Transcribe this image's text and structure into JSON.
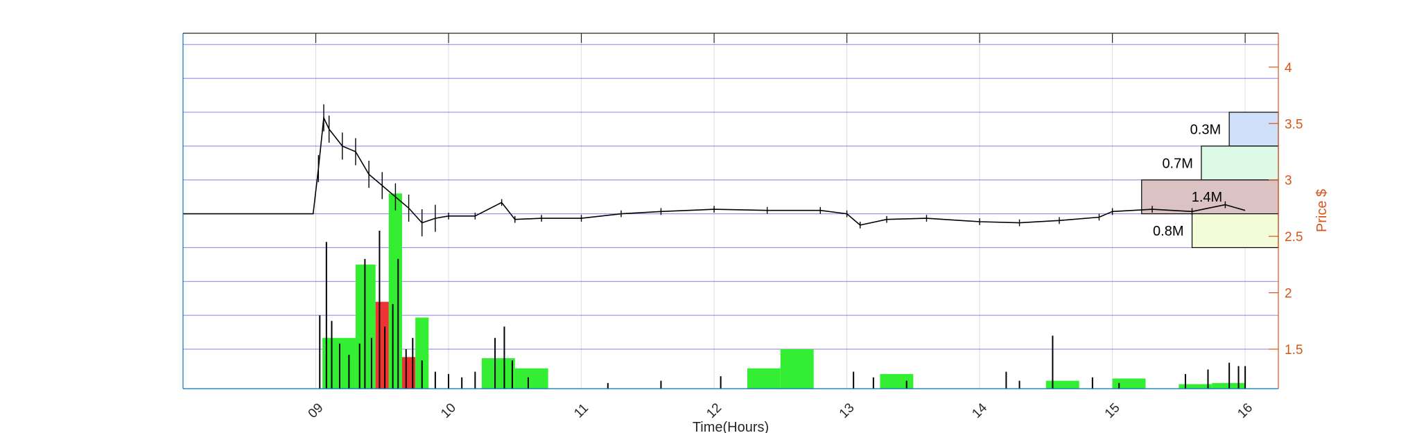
{
  "chart_data": {
    "type": "candlestick-volume",
    "xlabel": "Time(Hours)",
    "ylabel": "Price $",
    "xlim": [
      8.0,
      16.25
    ],
    "ylim": [
      1.15,
      4.3
    ],
    "x_ticks": [
      9,
      10,
      11,
      12,
      13,
      14,
      15,
      16
    ],
    "x_tick_labels": [
      "09",
      "10",
      "11",
      "12",
      "13",
      "14",
      "15",
      "16"
    ],
    "y_ticks": [
      1.5,
      2,
      2.5,
      3,
      3.5,
      4
    ],
    "y_tick_labels": [
      "1.5",
      "2",
      "2.5",
      "3",
      "3.5",
      "4"
    ],
    "price_levels": [
      1.5,
      1.8,
      2.1,
      2.4,
      2.7,
      3.0,
      3.3,
      3.6,
      3.9,
      4.2
    ],
    "price_path": [
      [
        8.0,
        2.7
      ],
      [
        8.98,
        2.7
      ],
      [
        9.02,
        3.1
      ],
      [
        9.06,
        3.55
      ],
      [
        9.1,
        3.45
      ],
      [
        9.2,
        3.3
      ],
      [
        9.3,
        3.25
      ],
      [
        9.4,
        3.05
      ],
      [
        9.5,
        2.95
      ],
      [
        9.6,
        2.85
      ],
      [
        9.7,
        2.75
      ],
      [
        9.8,
        2.62
      ],
      [
        9.9,
        2.66
      ],
      [
        10.0,
        2.68
      ],
      [
        10.2,
        2.68
      ],
      [
        10.4,
        2.8
      ],
      [
        10.5,
        2.65
      ],
      [
        10.7,
        2.66
      ],
      [
        11.0,
        2.66
      ],
      [
        11.3,
        2.7
      ],
      [
        11.6,
        2.72
      ],
      [
        12.0,
        2.74
      ],
      [
        12.4,
        2.73
      ],
      [
        12.8,
        2.73
      ],
      [
        13.0,
        2.7
      ],
      [
        13.1,
        2.6
      ],
      [
        13.3,
        2.65
      ],
      [
        13.6,
        2.66
      ],
      [
        14.0,
        2.63
      ],
      [
        14.3,
        2.62
      ],
      [
        14.6,
        2.64
      ],
      [
        14.9,
        2.67
      ],
      [
        15.0,
        2.72
      ],
      [
        15.3,
        2.74
      ],
      [
        15.6,
        2.72
      ],
      [
        15.85,
        2.78
      ],
      [
        16.0,
        2.73
      ]
    ],
    "volume_baseline": 1.15,
    "volume_bars": [
      {
        "x0": 9.05,
        "x1": 9.3,
        "top": 1.6,
        "color": "#33ee33"
      },
      {
        "x0": 9.3,
        "x1": 9.45,
        "top": 2.25,
        "color": "#33ee33"
      },
      {
        "x0": 9.45,
        "x1": 9.55,
        "top": 1.92,
        "color": "#ee3333"
      },
      {
        "x0": 9.55,
        "x1": 9.65,
        "top": 2.88,
        "color": "#33ee33"
      },
      {
        "x0": 9.65,
        "x1": 9.75,
        "top": 1.43,
        "color": "#ee3333"
      },
      {
        "x0": 9.75,
        "x1": 9.85,
        "top": 1.78,
        "color": "#33ee33"
      },
      {
        "x0": 10.25,
        "x1": 10.5,
        "top": 1.42,
        "color": "#33ee33"
      },
      {
        "x0": 10.5,
        "x1": 10.75,
        "top": 1.33,
        "color": "#33ee33"
      },
      {
        "x0": 12.25,
        "x1": 12.5,
        "top": 1.33,
        "color": "#33ee33"
      },
      {
        "x0": 12.5,
        "x1": 12.75,
        "top": 1.5,
        "color": "#33ee33"
      },
      {
        "x0": 13.25,
        "x1": 13.5,
        "top": 1.28,
        "color": "#33ee33"
      },
      {
        "x0": 14.5,
        "x1": 14.75,
        "top": 1.22,
        "color": "#33ee33"
      },
      {
        "x0": 15.0,
        "x1": 15.25,
        "top": 1.24,
        "color": "#33ee33"
      },
      {
        "x0": 15.5,
        "x1": 15.75,
        "top": 1.19,
        "color": "#33ee33"
      },
      {
        "x0": 15.75,
        "x1": 16.0,
        "top": 1.2,
        "color": "#33ee33"
      }
    ],
    "volume_spikes": [
      [
        9.03,
        1.8
      ],
      [
        9.08,
        2.45
      ],
      [
        9.12,
        1.75
      ],
      [
        9.18,
        1.55
      ],
      [
        9.25,
        1.45
      ],
      [
        9.33,
        1.55
      ],
      [
        9.37,
        2.3
      ],
      [
        9.42,
        1.6
      ],
      [
        9.48,
        2.55
      ],
      [
        9.52,
        1.7
      ],
      [
        9.58,
        1.9
      ],
      [
        9.62,
        2.3
      ],
      [
        9.68,
        1.5
      ],
      [
        9.73,
        1.6
      ],
      [
        9.8,
        1.4
      ],
      [
        9.9,
        1.3
      ],
      [
        10.0,
        1.28
      ],
      [
        10.1,
        1.25
      ],
      [
        10.2,
        1.3
      ],
      [
        10.35,
        1.6
      ],
      [
        10.42,
        1.7
      ],
      [
        10.48,
        1.4
      ],
      [
        10.6,
        1.25
      ],
      [
        11.2,
        1.2
      ],
      [
        11.6,
        1.22
      ],
      [
        12.05,
        1.26
      ],
      [
        13.05,
        1.3
      ],
      [
        13.2,
        1.25
      ],
      [
        13.45,
        1.22
      ],
      [
        14.2,
        1.3
      ],
      [
        14.3,
        1.22
      ],
      [
        14.55,
        1.62
      ],
      [
        14.85,
        1.25
      ],
      [
        15.05,
        1.2
      ],
      [
        15.55,
        1.28
      ],
      [
        15.72,
        1.32
      ],
      [
        15.88,
        1.38
      ],
      [
        15.95,
        1.35
      ],
      [
        16.0,
        1.35
      ]
    ],
    "volume_profile": [
      {
        "label": "0.3M",
        "price_low": 3.3,
        "price_high": 3.6,
        "width": 0.37,
        "color": "#cfe0fb"
      },
      {
        "label": "0.7M",
        "price_low": 3.0,
        "price_high": 3.3,
        "width": 0.58,
        "color": "#dcf9e5"
      },
      {
        "label": "1.4M",
        "price_low": 2.7,
        "price_high": 3.0,
        "width": 1.03,
        "color": "#dcc3c3"
      },
      {
        "label": "0.8M",
        "price_low": 2.4,
        "price_high": 2.7,
        "width": 0.65,
        "color": "#f2fcd8"
      }
    ],
    "colors": {
      "price_axis": "#d95319",
      "grid": "#dcdce6",
      "price_level_lines": "#5a5adc",
      "candles": "#000000",
      "volume_up": "#33ee33",
      "volume_down": "#ee3333",
      "left_axis": "#0072bd"
    }
  }
}
